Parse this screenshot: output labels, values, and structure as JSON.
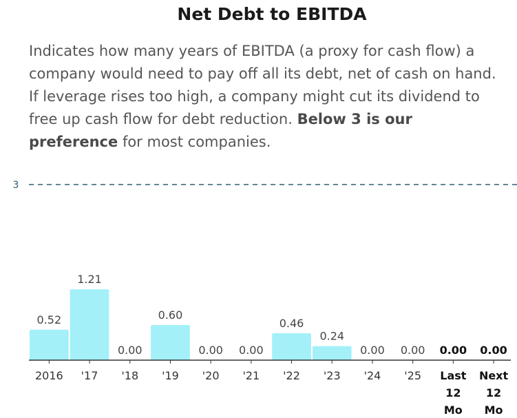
{
  "title": "Net Debt to EBITDA",
  "description": {
    "text": "Indicates how many years of EBITDA (a proxy for cash flow) a company would need to pay off all its debt, net of cash on hand. If leverage rises too high, a company might cut its dividend to free up cash flow for debt reduction. ",
    "bold": "Below 3 is our preference",
    "tail": " for most companies."
  },
  "chart_data": {
    "type": "bar",
    "categories": [
      "2016",
      "'17",
      "'18",
      "'19",
      "'20",
      "'21",
      "'22",
      "'23",
      "'24",
      "'25",
      "Last 12 Mo",
      "Next 12 Mo"
    ],
    "values": [
      0.52,
      1.21,
      0.0,
      0.6,
      0.0,
      0.0,
      0.46,
      0.24,
      0.0,
      0.0,
      0.0,
      0.0
    ],
    "value_labels": [
      "0.52",
      "1.21",
      "0.00",
      "0.60",
      "0.00",
      "0.00",
      "0.46",
      "0.24",
      "0.00",
      "0.00",
      "0.00",
      "0.00"
    ],
    "emphasized": [
      false,
      false,
      false,
      false,
      false,
      false,
      false,
      false,
      false,
      false,
      true,
      true
    ],
    "reference_line": {
      "value": 3,
      "label": "3"
    },
    "ylim": [
      0,
      3
    ],
    "bar_color": "#a3f0f9",
    "reference_color": "#2a5f73"
  }
}
